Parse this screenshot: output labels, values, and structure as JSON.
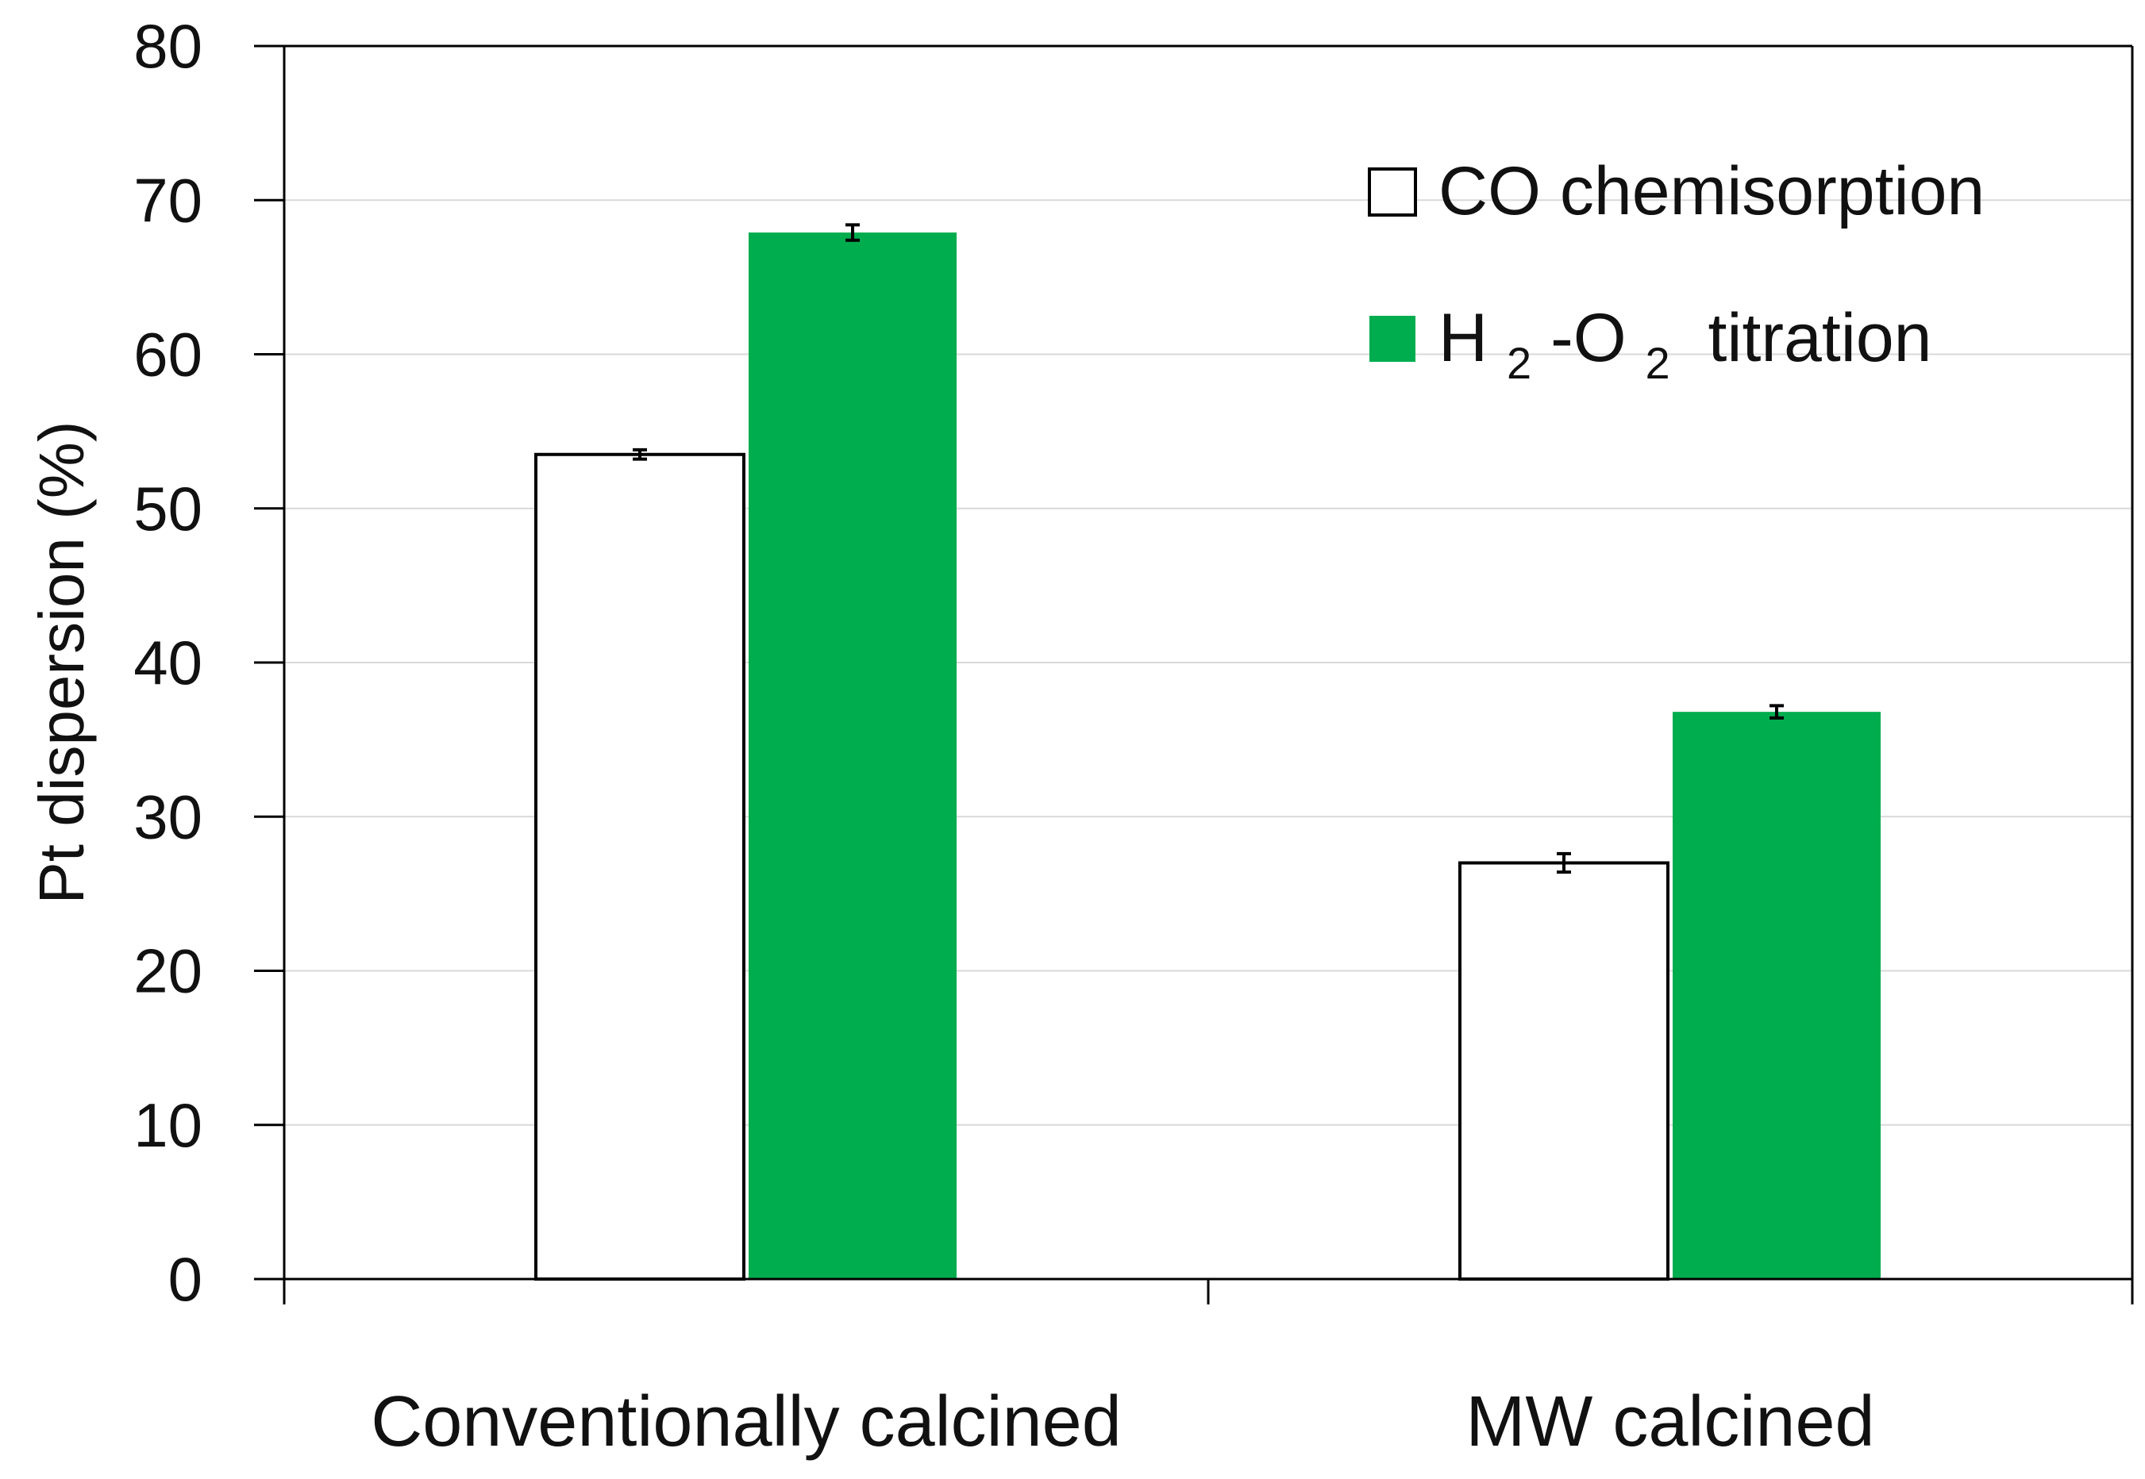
{
  "chart_data": {
    "type": "bar",
    "title": "",
    "xlabel": "",
    "ylabel": "Pt dispersion (%)",
    "ylim": [
      0,
      80
    ],
    "yticks": [
      0,
      10,
      20,
      30,
      40,
      50,
      60,
      70,
      80
    ],
    "grid": true,
    "legend_position": "top-right",
    "categories": [
      "Conventionally calcined",
      "MW calcined"
    ],
    "series": [
      {
        "name": "CO chemisorption",
        "legend_main": "CO chemisorption",
        "color": "#ffffff",
        "edge_color": "#000000",
        "values": [
          53.5,
          27.0
        ],
        "errors": [
          0.3,
          0.6
        ]
      },
      {
        "name": "H2-O2 titration",
        "legend_parts": {
          "a": "H",
          "sub1": "2",
          "b": "-O",
          "sub2": "2",
          "c": " titration"
        },
        "color": "#00ad4e",
        "edge_color": "#00ad4e",
        "values": [
          67.9,
          36.8
        ],
        "errors": [
          0.5,
          0.4
        ]
      }
    ]
  }
}
